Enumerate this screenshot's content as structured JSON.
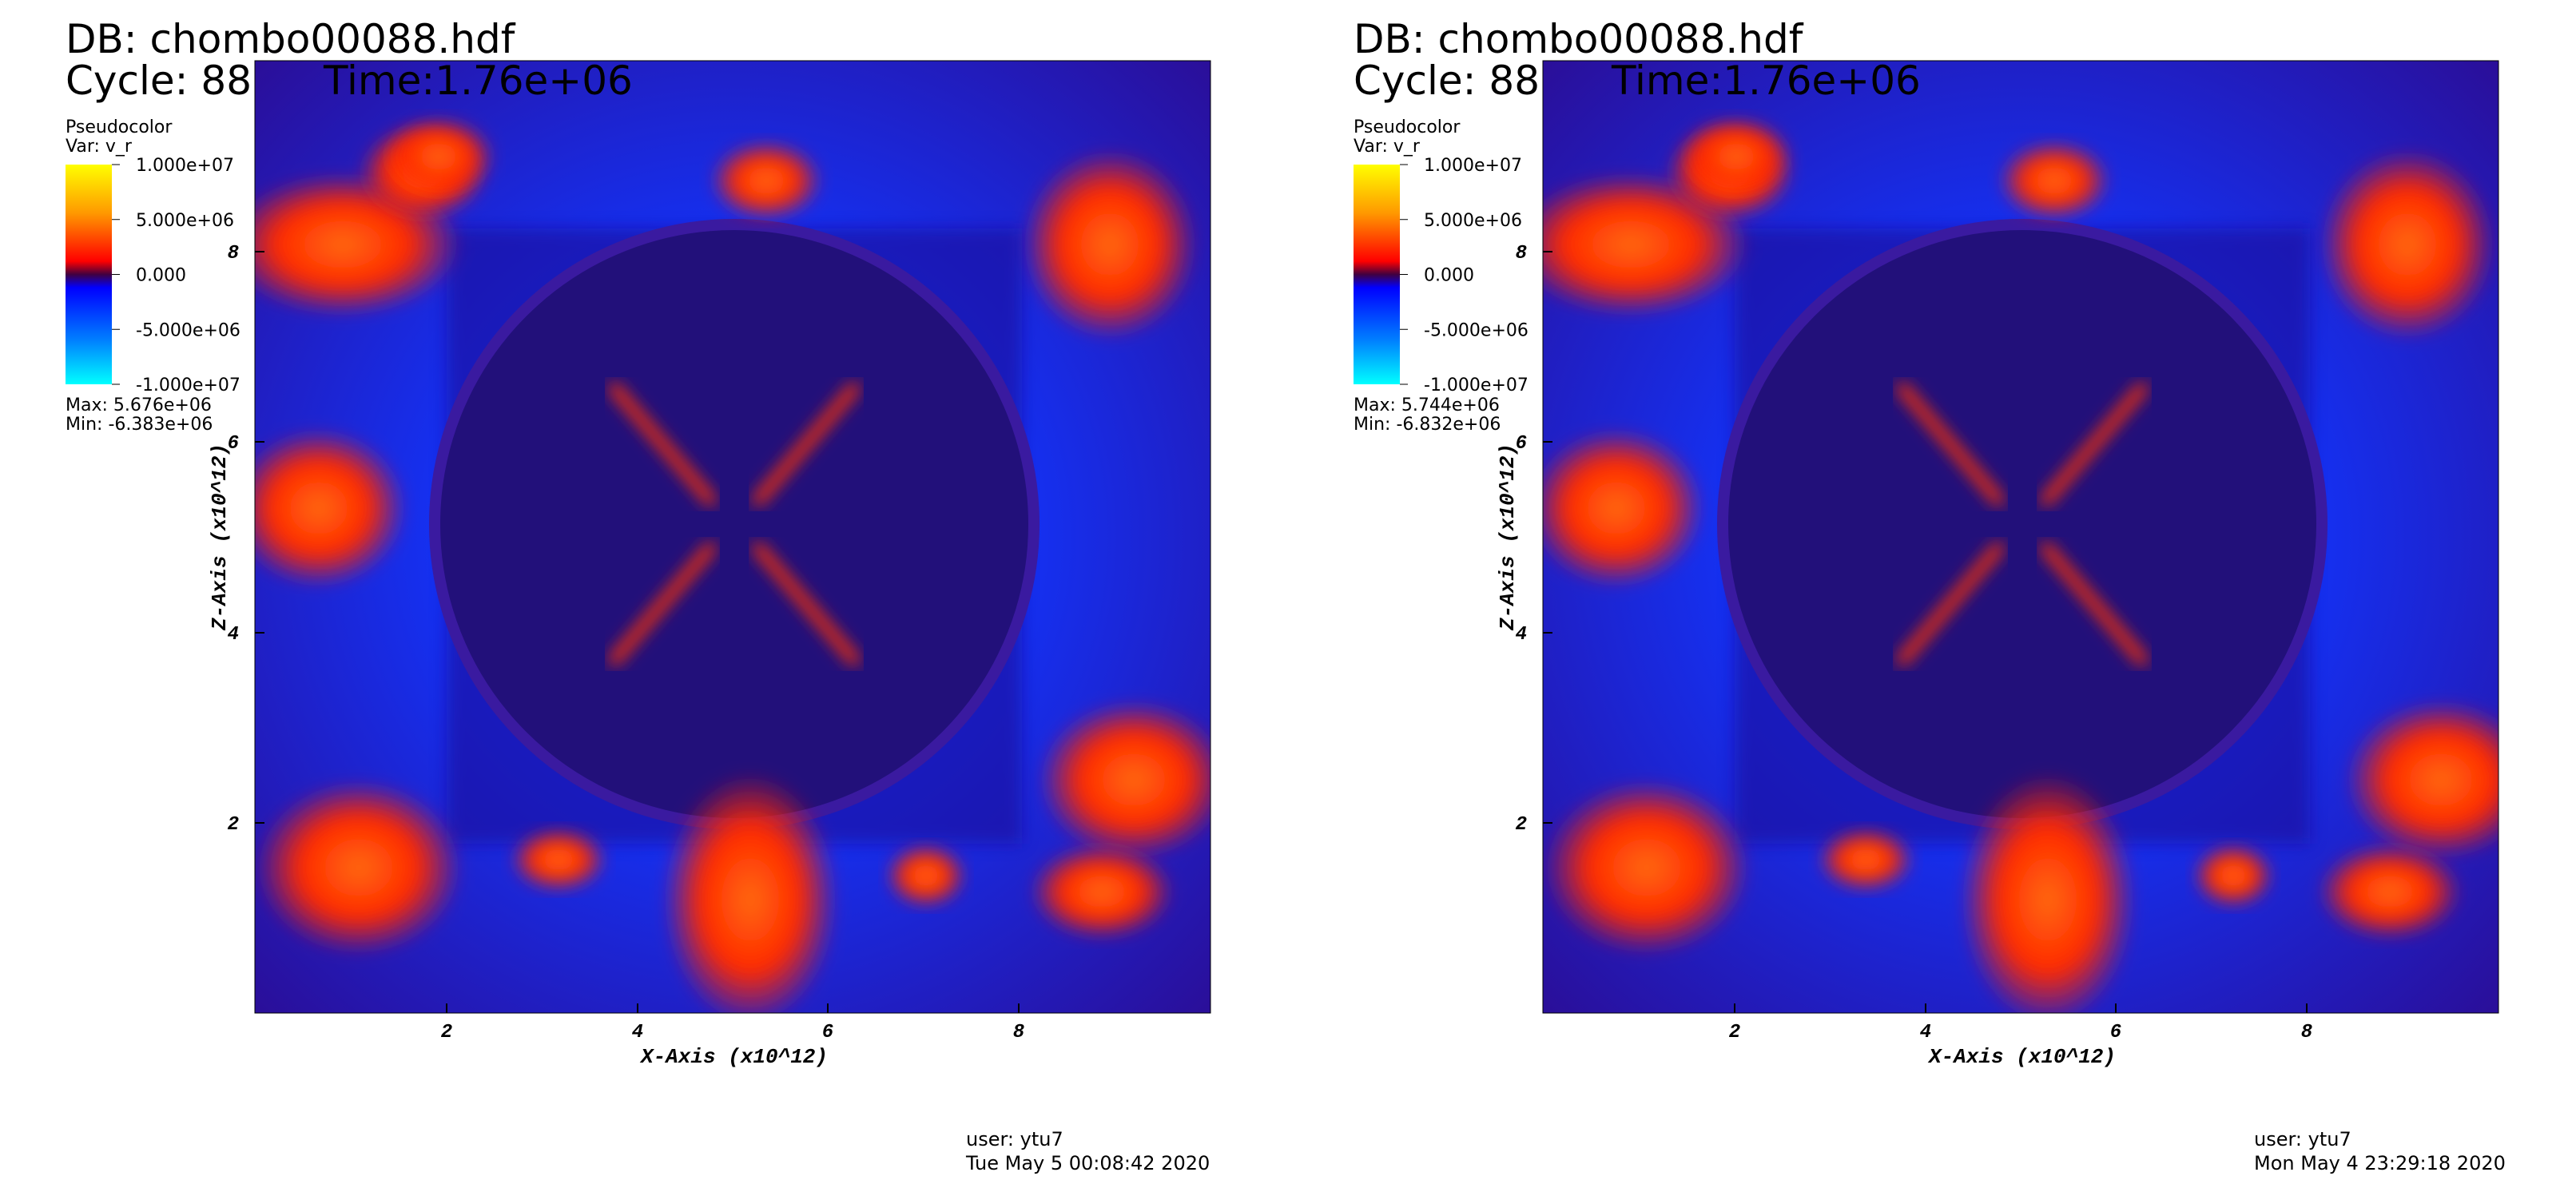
{
  "panels": [
    {
      "db": "DB: chombo00088.hdf",
      "cycle": "Cycle: 88",
      "time": "Time:1.76e+06",
      "legend": {
        "title": "Pseudocolor",
        "var": "Var: v_r",
        "labels": [
          "1.000e+07",
          "5.000e+06",
          "0.000",
          "-5.000e+06",
          "-1.000e+07"
        ],
        "max": "Max:  5.676e+06",
        "min": "Min: -6.383e+06"
      },
      "xticks": [
        "2",
        "4",
        "6",
        "8"
      ],
      "yticks": [
        "8",
        "6",
        "4",
        "2"
      ],
      "xlabel": "X-Axis (x10^12)",
      "ylabel": "Z-Axis (x10^12)",
      "user": "user: ytu7",
      "date": "Tue May  5 00:08:42 2020"
    },
    {
      "db": "DB: chombo00088.hdf",
      "cycle": "Cycle: 88",
      "time": "Time:1.76e+06",
      "legend": {
        "title": "Pseudocolor",
        "var": "Var: v_r",
        "labels": [
          "1.000e+07",
          "5.000e+06",
          "0.000",
          "-5.000e+06",
          "-1.000e+07"
        ],
        "max": "Max:  5.744e+06",
        "min": "Min: -6.832e+06"
      },
      "xticks": [
        "2",
        "4",
        "6",
        "8"
      ],
      "yticks": [
        "8",
        "6",
        "4",
        "2"
      ],
      "xlabel": "X-Axis (x10^12)",
      "ylabel": "Z-Axis (x10^12)",
      "user": "user: ytu7",
      "date": "Mon May  4 23:29:18 2020"
    }
  ]
}
